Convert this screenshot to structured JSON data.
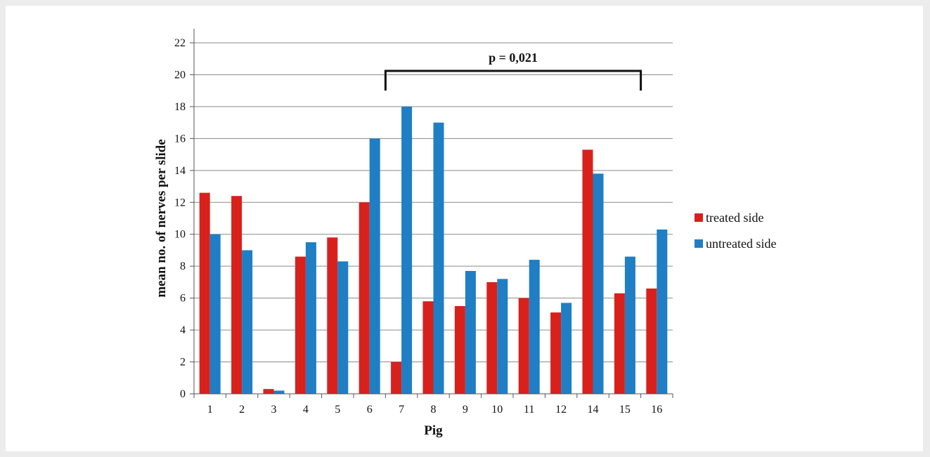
{
  "chart_data": {
    "type": "bar",
    "title": "",
    "xlabel": "Pig",
    "ylabel": "mean no. of nerves per slide",
    "ylim": [
      0,
      22
    ],
    "yticks": [
      0,
      2,
      4,
      6,
      8,
      10,
      12,
      14,
      16,
      18,
      20,
      22
    ],
    "grid": true,
    "legend_position": "right",
    "categories": [
      "1",
      "2",
      "3",
      "4",
      "5",
      "6",
      "7",
      "8",
      "9",
      "10",
      "11",
      "12",
      "14",
      "15",
      "16"
    ],
    "series": [
      {
        "name": "treated side",
        "color": "#d9211c",
        "values": [
          12.6,
          12.4,
          0.3,
          8.6,
          9.8,
          12.0,
          2.0,
          5.8,
          5.5,
          7.0,
          6.0,
          5.1,
          15.3,
          6.3,
          6.6
        ]
      },
      {
        "name": "untreated side",
        "color": "#1f7ec4",
        "values": [
          10.0,
          9.0,
          0.2,
          9.5,
          8.3,
          16.0,
          18.0,
          17.0,
          7.7,
          7.2,
          8.4,
          5.7,
          13.8,
          8.6,
          10.3
        ]
      }
    ],
    "annotation": {
      "text": "p = 0,021",
      "from_category": "6",
      "to_category": "15"
    }
  }
}
